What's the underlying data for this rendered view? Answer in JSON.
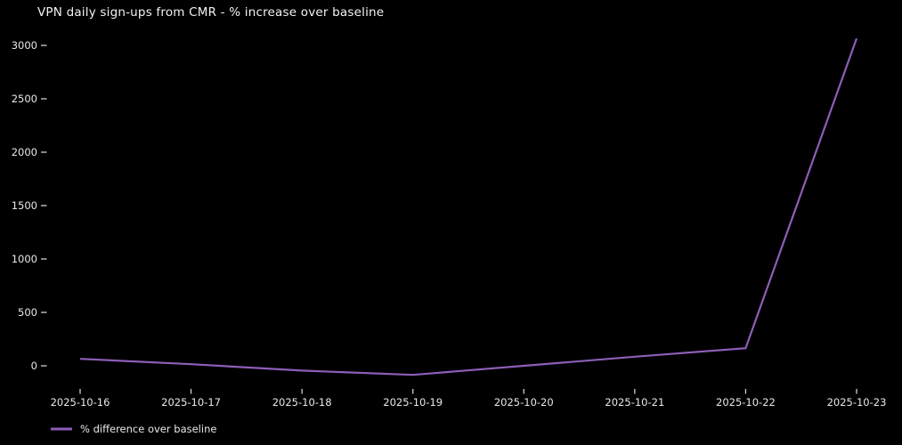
{
  "colors": {
    "background": "#000000",
    "text": "#e8e8e8",
    "tick": "#d0d0d0",
    "line": "#8d5eb7"
  },
  "legend": {
    "position": "bottom-left"
  },
  "chart_data": {
    "type": "line",
    "title": "VPN daily sign-ups from CMR - % increase over baseline",
    "x": [
      "2025-10-16",
      "2025-10-17",
      "2025-10-18",
      "2025-10-19",
      "2025-10-20",
      "2025-10-21",
      "2025-10-22",
      "2025-10-23"
    ],
    "series": [
      {
        "name": "% difference over baseline",
        "values": [
          65,
          15,
          -45,
          -85,
          0,
          85,
          165,
          3065
        ],
        "color": "#8d5eb7"
      }
    ],
    "xlabel": "",
    "ylabel": "",
    "yticks": [
      0,
      500,
      1000,
      1500,
      2000,
      2500,
      3000
    ],
    "ylim": [
      -250,
      3200
    ],
    "grid": false,
    "legend_position": "lower left"
  }
}
